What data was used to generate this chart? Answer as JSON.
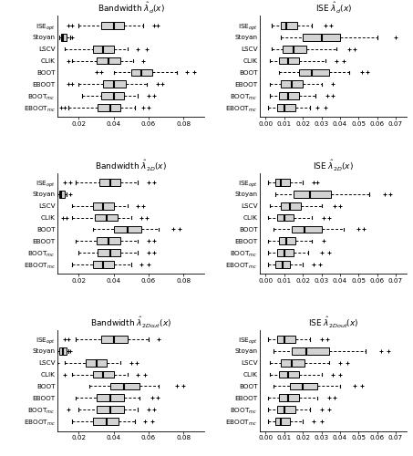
{
  "row_titles_bw": [
    "Bandwidth $\\hat{\\lambda}_{d}(x)$",
    "Bandwidth $\\hat{\\lambda}_{2D}(x)$",
    "Bandwidth $\\hat{\\lambda}_{2Dout}(x)$"
  ],
  "row_titles_ise": [
    "ISE $\\hat{\\lambda}_{d}(x)$",
    "ISE $\\hat{\\lambda}_{2D}(x)$",
    "ISE $\\hat{\\lambda}_{2Dout}(x)$"
  ],
  "y_labels": [
    "ISE$_{opt}$",
    "Stoyan",
    "LSCV",
    "CLIK",
    "BOOT",
    "EBOOT",
    "BOOT$_{mc}$",
    "EBOOT$_{mc}$"
  ],
  "bw_xlim": [
    0.008,
    0.092
  ],
  "bw_xticks": [
    0.02,
    0.04,
    0.06,
    0.08
  ],
  "ise_xlim": [
    -0.003,
    0.076
  ],
  "ise_xticks": [
    0.0,
    0.01,
    0.02,
    0.03,
    0.04,
    0.05,
    0.06,
    0.07
  ],
  "box_color": "#d3d3d3",
  "median_color": "#000000",
  "bw_data": [
    [
      {
        "q1": 0.033,
        "med": 0.04,
        "q3": 0.046,
        "wlo": 0.02,
        "whi": 0.057,
        "fliers_lo": [
          0.014,
          0.016
        ],
        "fliers_hi": [
          0.063,
          0.065
        ]
      },
      {
        "q1": 0.01,
        "med": 0.011,
        "q3": 0.013,
        "wlo": 0.009,
        "whi": 0.015,
        "fliers_lo": [],
        "fliers_hi": [
          0.016
        ]
      },
      {
        "q1": 0.028,
        "med": 0.034,
        "q3": 0.04,
        "wlo": 0.012,
        "whi": 0.048,
        "fliers_lo": [],
        "fliers_hi": [
          0.054,
          0.059
        ]
      },
      {
        "q1": 0.03,
        "med": 0.037,
        "q3": 0.044,
        "wlo": 0.016,
        "whi": 0.051,
        "fliers_lo": [
          0.014
        ],
        "fliers_hi": [
          0.057
        ]
      },
      {
        "q1": 0.05,
        "med": 0.056,
        "q3": 0.062,
        "wlo": 0.04,
        "whi": 0.076,
        "fliers_lo": [
          0.03,
          0.033
        ],
        "fliers_hi": [
          0.082,
          0.086
        ]
      },
      {
        "q1": 0.034,
        "med": 0.04,
        "q3": 0.047,
        "wlo": 0.02,
        "whi": 0.059,
        "fliers_lo": [
          0.014,
          0.016
        ],
        "fliers_hi": [
          0.065,
          0.068
        ]
      },
      {
        "q1": 0.033,
        "med": 0.04,
        "q3": 0.046,
        "wlo": 0.022,
        "whi": 0.054,
        "fliers_lo": [],
        "fliers_hi": [
          0.06,
          0.063
        ]
      },
      {
        "q1": 0.031,
        "med": 0.038,
        "q3": 0.044,
        "wlo": 0.014,
        "whi": 0.052,
        "fliers_lo": [
          0.01,
          0.012
        ],
        "fliers_hi": [
          0.057,
          0.06
        ]
      }
    ],
    [
      {
        "q1": 0.032,
        "med": 0.038,
        "q3": 0.044,
        "wlo": 0.018,
        "whi": 0.054,
        "fliers_lo": [
          0.012,
          0.015
        ],
        "fliers_hi": [
          0.06,
          0.063
        ]
      },
      {
        "q1": 0.009,
        "med": 0.01,
        "q3": 0.012,
        "wlo": 0.008,
        "whi": 0.013,
        "fliers_lo": [],
        "fliers_hi": [
          0.015
        ]
      },
      {
        "q1": 0.028,
        "med": 0.034,
        "q3": 0.04,
        "wlo": 0.016,
        "whi": 0.048,
        "fliers_lo": [],
        "fliers_hi": [
          0.054,
          0.057
        ]
      },
      {
        "q1": 0.029,
        "med": 0.036,
        "q3": 0.042,
        "wlo": 0.016,
        "whi": 0.05,
        "fliers_lo": [
          0.011,
          0.013
        ],
        "fliers_hi": [
          0.056,
          0.059
        ]
      },
      {
        "q1": 0.04,
        "med": 0.048,
        "q3": 0.056,
        "wlo": 0.028,
        "whi": 0.066,
        "fliers_lo": [],
        "fliers_hi": [
          0.074,
          0.078
        ]
      },
      {
        "q1": 0.03,
        "med": 0.037,
        "q3": 0.044,
        "wlo": 0.018,
        "whi": 0.054,
        "fliers_lo": [],
        "fliers_hi": [
          0.06,
          0.063
        ]
      },
      {
        "q1": 0.031,
        "med": 0.038,
        "q3": 0.044,
        "wlo": 0.02,
        "whi": 0.054,
        "fliers_lo": [],
        "fliers_hi": [
          0.06,
          0.063
        ]
      },
      {
        "q1": 0.028,
        "med": 0.034,
        "q3": 0.04,
        "wlo": 0.016,
        "whi": 0.05,
        "fliers_lo": [],
        "fliers_hi": [
          0.056,
          0.06
        ]
      }
    ],
    [
      {
        "q1": 0.033,
        "med": 0.04,
        "q3": 0.048,
        "wlo": 0.018,
        "whi": 0.06,
        "fliers_lo": [
          0.012,
          0.014
        ],
        "fliers_hi": [
          0.066
        ]
      },
      {
        "q1": 0.009,
        "med": 0.011,
        "q3": 0.013,
        "wlo": 0.008,
        "whi": 0.014,
        "fliers_lo": [],
        "fliers_hi": [
          0.015
        ]
      },
      {
        "q1": 0.024,
        "med": 0.03,
        "q3": 0.036,
        "wlo": 0.012,
        "whi": 0.044,
        "fliers_lo": [
          0.008
        ],
        "fliers_hi": [
          0.05,
          0.053
        ]
      },
      {
        "q1": 0.028,
        "med": 0.034,
        "q3": 0.04,
        "wlo": 0.016,
        "whi": 0.048,
        "fliers_lo": [
          0.012
        ],
        "fliers_hi": [
          0.054,
          0.058
        ]
      },
      {
        "q1": 0.038,
        "med": 0.046,
        "q3": 0.055,
        "wlo": 0.026,
        "whi": 0.066,
        "fliers_lo": [],
        "fliers_hi": [
          0.076,
          0.08
        ]
      },
      {
        "q1": 0.03,
        "med": 0.038,
        "q3": 0.046,
        "wlo": 0.018,
        "whi": 0.055,
        "fliers_lo": [],
        "fliers_hi": [
          0.062,
          0.065
        ]
      },
      {
        "q1": 0.03,
        "med": 0.038,
        "q3": 0.046,
        "wlo": 0.02,
        "whi": 0.054,
        "fliers_lo": [
          0.014
        ],
        "fliers_hi": [
          0.06,
          0.063
        ]
      },
      {
        "q1": 0.028,
        "med": 0.036,
        "q3": 0.043,
        "wlo": 0.016,
        "whi": 0.052,
        "fliers_lo": [],
        "fliers_hi": [
          0.058,
          0.062
        ]
      }
    ]
  ],
  "ise_data": [
    [
      {
        "q1": 0.008,
        "med": 0.011,
        "q3": 0.017,
        "wlo": 0.003,
        "whi": 0.025,
        "fliers_lo": [],
        "fliers_hi": [
          0.032,
          0.035
        ]
      },
      {
        "q1": 0.02,
        "med": 0.03,
        "q3": 0.04,
        "wlo": 0.008,
        "whi": 0.06,
        "fliers_lo": [],
        "fliers_hi": [
          0.07
        ]
      },
      {
        "q1": 0.009,
        "med": 0.015,
        "q3": 0.022,
        "wlo": 0.003,
        "whi": 0.038,
        "fliers_lo": [],
        "fliers_hi": [
          0.045,
          0.048
        ]
      },
      {
        "q1": 0.007,
        "med": 0.012,
        "q3": 0.018,
        "wlo": 0.002,
        "whi": 0.032,
        "fliers_lo": [],
        "fliers_hi": [
          0.038,
          0.042
        ]
      },
      {
        "q1": 0.018,
        "med": 0.025,
        "q3": 0.034,
        "wlo": 0.007,
        "whi": 0.045,
        "fliers_lo": [],
        "fliers_hi": [
          0.052,
          0.055
        ]
      },
      {
        "q1": 0.008,
        "med": 0.014,
        "q3": 0.02,
        "wlo": 0.002,
        "whi": 0.03,
        "fliers_lo": [],
        "fliers_hi": [
          0.036
        ]
      },
      {
        "q1": 0.007,
        "med": 0.012,
        "q3": 0.018,
        "wlo": 0.002,
        "whi": 0.027,
        "fliers_lo": [],
        "fliers_hi": [
          0.033,
          0.036
        ]
      },
      {
        "q1": 0.006,
        "med": 0.01,
        "q3": 0.016,
        "wlo": 0.001,
        "whi": 0.024,
        "fliers_lo": [],
        "fliers_hi": [
          0.028,
          0.032
        ]
      }
    ],
    [
      {
        "q1": 0.005,
        "med": 0.008,
        "q3": 0.013,
        "wlo": 0.001,
        "whi": 0.02,
        "fliers_lo": [],
        "fliers_hi": [
          0.026,
          0.028
        ]
      },
      {
        "q1": 0.015,
        "med": 0.024,
        "q3": 0.035,
        "wlo": 0.005,
        "whi": 0.056,
        "fliers_lo": [],
        "fliers_hi": [
          0.064,
          0.067
        ]
      },
      {
        "q1": 0.008,
        "med": 0.013,
        "q3": 0.019,
        "wlo": 0.002,
        "whi": 0.03,
        "fliers_lo": [],
        "fliers_hi": [
          0.037,
          0.04
        ]
      },
      {
        "q1": 0.006,
        "med": 0.01,
        "q3": 0.015,
        "wlo": 0.001,
        "whi": 0.025,
        "fliers_lo": [],
        "fliers_hi": [
          0.031,
          0.034
        ]
      },
      {
        "q1": 0.014,
        "med": 0.021,
        "q3": 0.03,
        "wlo": 0.004,
        "whi": 0.042,
        "fliers_lo": [],
        "fliers_hi": [
          0.05,
          0.053
        ]
      },
      {
        "q1": 0.007,
        "med": 0.011,
        "q3": 0.016,
        "wlo": 0.001,
        "whi": 0.025,
        "fliers_lo": [],
        "fliers_hi": [
          0.031
        ]
      },
      {
        "q1": 0.006,
        "med": 0.01,
        "q3": 0.015,
        "wlo": 0.001,
        "whi": 0.023,
        "fliers_lo": [],
        "fliers_hi": [
          0.03,
          0.034
        ]
      },
      {
        "q1": 0.005,
        "med": 0.009,
        "q3": 0.013,
        "wlo": 0.001,
        "whi": 0.02,
        "fliers_lo": [],
        "fliers_hi": [
          0.026,
          0.029
        ]
      }
    ],
    [
      {
        "q1": 0.006,
        "med": 0.01,
        "q3": 0.016,
        "wlo": 0.001,
        "whi": 0.024,
        "fliers_lo": [],
        "fliers_hi": [
          0.03,
          0.033
        ]
      },
      {
        "q1": 0.014,
        "med": 0.022,
        "q3": 0.034,
        "wlo": 0.004,
        "whi": 0.054,
        "fliers_lo": [],
        "fliers_hi": [
          0.062,
          0.066
        ]
      },
      {
        "q1": 0.008,
        "med": 0.014,
        "q3": 0.021,
        "wlo": 0.002,
        "whi": 0.034,
        "fliers_lo": [],
        "fliers_hi": [
          0.04,
          0.044
        ]
      },
      {
        "q1": 0.007,
        "med": 0.012,
        "q3": 0.018,
        "wlo": 0.002,
        "whi": 0.03,
        "fliers_lo": [],
        "fliers_hi": [
          0.036,
          0.04
        ]
      },
      {
        "q1": 0.013,
        "med": 0.02,
        "q3": 0.028,
        "wlo": 0.004,
        "whi": 0.04,
        "fliers_lo": [],
        "fliers_hi": [
          0.048,
          0.052
        ]
      },
      {
        "q1": 0.007,
        "med": 0.012,
        "q3": 0.018,
        "wlo": 0.001,
        "whi": 0.028,
        "fliers_lo": [],
        "fliers_hi": [
          0.034,
          0.037
        ]
      },
      {
        "q1": 0.006,
        "med": 0.01,
        "q3": 0.016,
        "wlo": 0.001,
        "whi": 0.024,
        "fliers_lo": [],
        "fliers_hi": [
          0.03,
          0.034
        ]
      },
      {
        "q1": 0.005,
        "med": 0.008,
        "q3": 0.013,
        "wlo": 0.001,
        "whi": 0.02,
        "fliers_lo": [],
        "fliers_hi": [
          0.026,
          0.03
        ]
      }
    ]
  ]
}
